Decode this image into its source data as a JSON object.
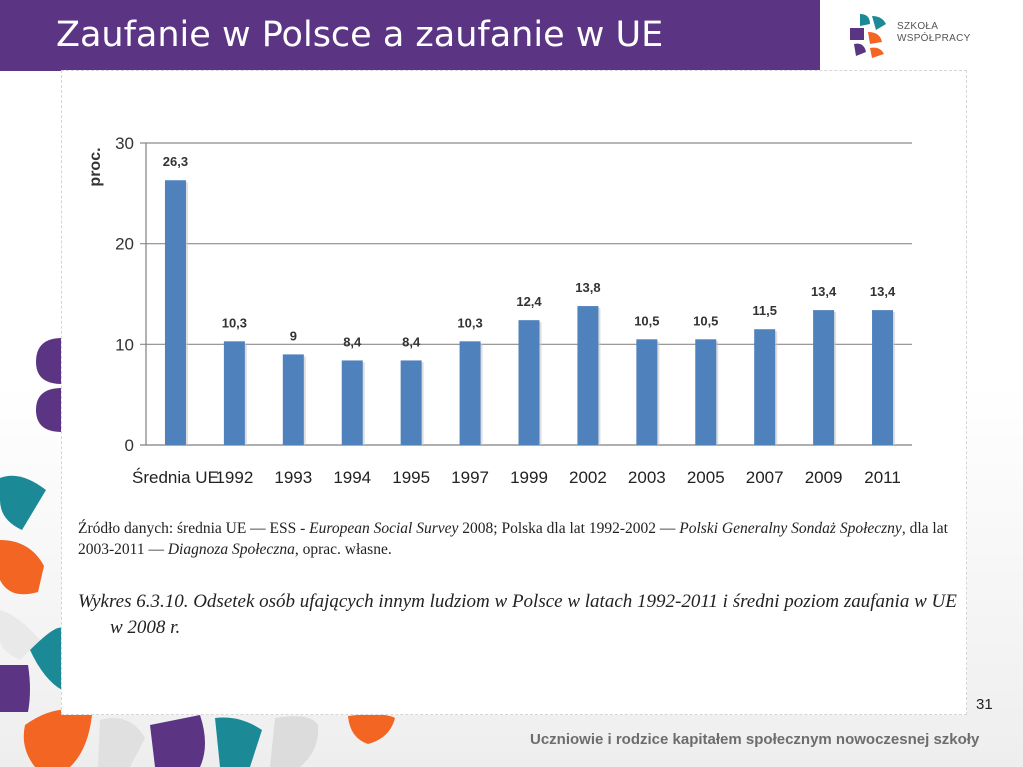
{
  "header": {
    "title": "Zaufanie w Polsce a zaufanie w UE"
  },
  "logo": {
    "line1": "SZKOŁA",
    "line2": "WSPÓŁPRACY"
  },
  "colors": {
    "header_bg": "#5b3584",
    "bar": "#4f81bd",
    "accent_orange": "#f26522",
    "accent_teal": "#1c8a96",
    "accent_purple": "#5b3584"
  },
  "chart_data": {
    "type": "bar",
    "categories": [
      "Średnia UE",
      "1992",
      "1993",
      "1994",
      "1995",
      "1997",
      "1999",
      "2002",
      "2003",
      "2005",
      "2007",
      "2009",
      "2011"
    ],
    "values": [
      26.3,
      10.3,
      9,
      8.4,
      8.4,
      10.3,
      12.4,
      13.8,
      10.5,
      10.5,
      11.5,
      13.4,
      13.4
    ],
    "data_labels": [
      "26,3",
      "10,3",
      "9",
      "8,4",
      "8,4",
      "10,3",
      "12,4",
      "13,8",
      "10,5",
      "10,5",
      "11,5",
      "13,4",
      "13,4"
    ],
    "ylabel": "proc.",
    "ylim": [
      0,
      30
    ],
    "yticks": [
      0,
      10,
      20,
      30
    ],
    "grid": true
  },
  "source": {
    "t1": "Źródło danych: średnia UE — ESS - ",
    "t2": "European Social Survey",
    "t3": " 2008; Polska dla lat 1992-2002 — ",
    "t4": "Polski Generalny Sondaż Społeczny",
    "t5": ", dla lat 2003-2011 — ",
    "t6": "Diagnoza Społeczna",
    "t7": ", oprac. własne."
  },
  "caption": {
    "line1": "Wykres 6.3.10. Odsetek osób ufających innym ludziom w Polsce w latach 1992-2011 i średni poziom zaufania w UE",
    "line2": "w 2008 r."
  },
  "page_number": "31",
  "footer": "Uczniowie i rodzice kapitałem społecznym nowoczesnej szkoły"
}
